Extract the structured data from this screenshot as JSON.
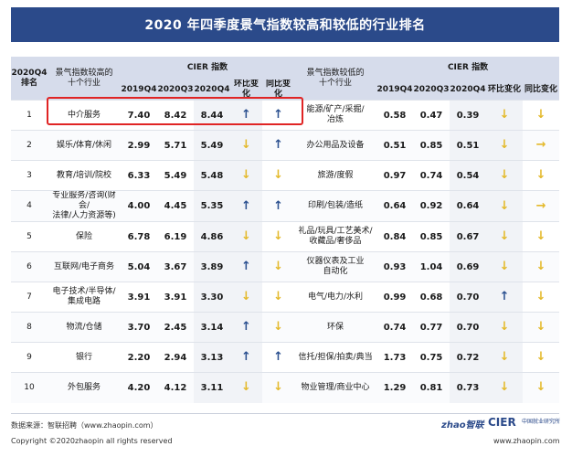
{
  "title": "2020 年四季度景气指数较高和较低的行业排名",
  "header": {
    "rank_label": "2020Q4\n排名",
    "high_industry_label": "景气指数较高的\n十个行业",
    "low_industry_label": "景气指数较低的\n十个行业",
    "cier_group_label": "CIER 指数",
    "col_2019q4": "2019Q4",
    "col_2020q3": "2020Q3",
    "col_2020q4": "2020Q4",
    "col_qoq": "环比变化",
    "col_yoy": "同比变化"
  },
  "rows": [
    {
      "rank": "1",
      "high": {
        "industry": "中介服务",
        "v2019q4": "7.40",
        "v2020q3": "8.42",
        "v2020q4": "8.44",
        "qoq": "up",
        "yoy": "up"
      },
      "low": {
        "industry": "能源/矿产/采掘/\n冶炼",
        "v2019q4": "0.58",
        "v2020q3": "0.47",
        "v2020q4": "0.39",
        "qoq": "down",
        "yoy": "down"
      }
    },
    {
      "rank": "2",
      "high": {
        "industry": "娱乐/体育/休闲",
        "v2019q4": "2.99",
        "v2020q3": "5.71",
        "v2020q4": "5.49",
        "qoq": "down",
        "yoy": "up"
      },
      "low": {
        "industry": "办公用品及设备",
        "v2019q4": "0.51",
        "v2020q3": "0.85",
        "v2020q4": "0.51",
        "qoq": "down",
        "yoy": "right"
      }
    },
    {
      "rank": "3",
      "high": {
        "industry": "教育/培训/院校",
        "v2019q4": "6.33",
        "v2020q3": "5.49",
        "v2020q4": "5.48",
        "qoq": "down",
        "yoy": "down"
      },
      "low": {
        "industry": "旅游/度假",
        "v2019q4": "0.97",
        "v2020q3": "0.74",
        "v2020q4": "0.54",
        "qoq": "down",
        "yoy": "down"
      }
    },
    {
      "rank": "4",
      "high": {
        "industry": "专业服务/咨询(财会/\n法律/人力资源等)",
        "v2019q4": "4.00",
        "v2020q3": "4.45",
        "v2020q4": "5.35",
        "qoq": "up",
        "yoy": "up"
      },
      "low": {
        "industry": "印刷/包装/造纸",
        "v2019q4": "0.64",
        "v2020q3": "0.92",
        "v2020q4": "0.64",
        "qoq": "down",
        "yoy": "right"
      }
    },
    {
      "rank": "5",
      "high": {
        "industry": "保险",
        "v2019q4": "6.78",
        "v2020q3": "6.19",
        "v2020q4": "4.86",
        "qoq": "down",
        "yoy": "down"
      },
      "low": {
        "industry": "礼品/玩具/工艺美术/\n收藏品/奢侈品",
        "v2019q4": "0.84",
        "v2020q3": "0.85",
        "v2020q4": "0.67",
        "qoq": "down",
        "yoy": "down"
      }
    },
    {
      "rank": "6",
      "high": {
        "industry": "互联网/电子商务",
        "v2019q4": "5.04",
        "v2020q3": "3.67",
        "v2020q4": "3.89",
        "qoq": "up",
        "yoy": "down"
      },
      "low": {
        "industry": "仪器仪表及工业\n自动化",
        "v2019q4": "0.93",
        "v2020q3": "1.04",
        "v2020q4": "0.69",
        "qoq": "down",
        "yoy": "down"
      }
    },
    {
      "rank": "7",
      "high": {
        "industry": "电子技术/半导体/\n集成电路",
        "v2019q4": "3.91",
        "v2020q3": "3.91",
        "v2020q4": "3.30",
        "qoq": "down",
        "yoy": "down"
      },
      "low": {
        "industry": "电气/电力/水利",
        "v2019q4": "0.99",
        "v2020q3": "0.68",
        "v2020q4": "0.70",
        "qoq": "up",
        "yoy": "down"
      }
    },
    {
      "rank": "8",
      "high": {
        "industry": "物流/仓储",
        "v2019q4": "3.70",
        "v2020q3": "2.45",
        "v2020q4": "3.14",
        "qoq": "up",
        "yoy": "down"
      },
      "low": {
        "industry": "环保",
        "v2019q4": "0.74",
        "v2020q3": "0.77",
        "v2020q4": "0.70",
        "qoq": "down",
        "yoy": "down"
      }
    },
    {
      "rank": "9",
      "high": {
        "industry": "银行",
        "v2019q4": "2.20",
        "v2020q3": "2.94",
        "v2020q4": "3.13",
        "qoq": "up",
        "yoy": "up"
      },
      "low": {
        "industry": "信托/担保/拍卖/典当",
        "v2019q4": "1.73",
        "v2020q3": "0.75",
        "v2020q4": "0.72",
        "qoq": "down",
        "yoy": "down"
      }
    },
    {
      "rank": "10",
      "high": {
        "industry": "外包服务",
        "v2019q4": "4.20",
        "v2020q3": "4.12",
        "v2020q4": "3.11",
        "qoq": "down",
        "yoy": "down"
      },
      "low": {
        "industry": "物业管理/商业中心",
        "v2019q4": "1.29",
        "v2020q3": "0.81",
        "v2020q4": "0.73",
        "qoq": "down",
        "yoy": "down"
      }
    }
  ],
  "arrow_glyphs": {
    "up": "↑",
    "down": "↓",
    "right": "→"
  },
  "arrow_colors": {
    "up": "#2a4f8f",
    "down": "#e4b92a",
    "right": "#e4b92a"
  },
  "highlight_color": "#e02424",
  "header_bg": "#d6dceb",
  "title_bg": "#2b4a8a",
  "footer": {
    "source": "数据来源：智联招聘（www.zhaopin.com）",
    "copyright": "Copyright ©2020zhaopin all rights reserved",
    "logo_zhao": "zhao智联",
    "logo_cier": "CIER",
    "logo_cier_cn": "中国就业研究所",
    "website": "www.zhaopin.com"
  }
}
